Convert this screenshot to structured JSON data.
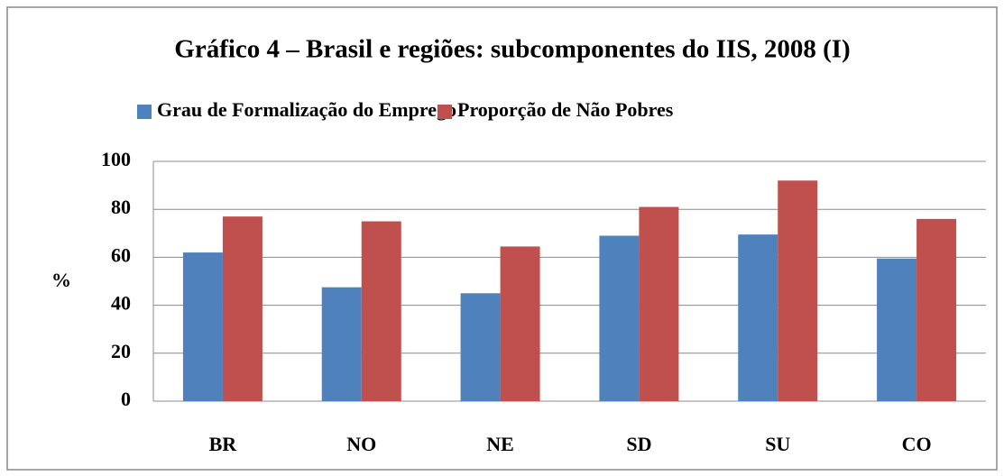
{
  "chart_data": {
    "type": "bar",
    "title": "Gráfico 4 – Brasil e regiões: subcomponentes do IIS, 2008 (I)",
    "y_label": "%",
    "categories": [
      "BR",
      "NO",
      "NE",
      "SD",
      "SU",
      "CO"
    ],
    "series": [
      {
        "name": "Grau de Formalização do Emprego",
        "color": "#4f81bd",
        "values": [
          62,
          47.5,
          45,
          69,
          69.5,
          59.5
        ]
      },
      {
        "name": "Proporção de Não Pobres",
        "color": "#c0504d",
        "values": [
          77,
          75,
          64.5,
          81,
          92,
          76
        ]
      }
    ],
    "ylim": [
      0,
      100
    ],
    "yticks": [
      0,
      20,
      40,
      60,
      80,
      100
    ],
    "grid": true,
    "legend": "top"
  }
}
